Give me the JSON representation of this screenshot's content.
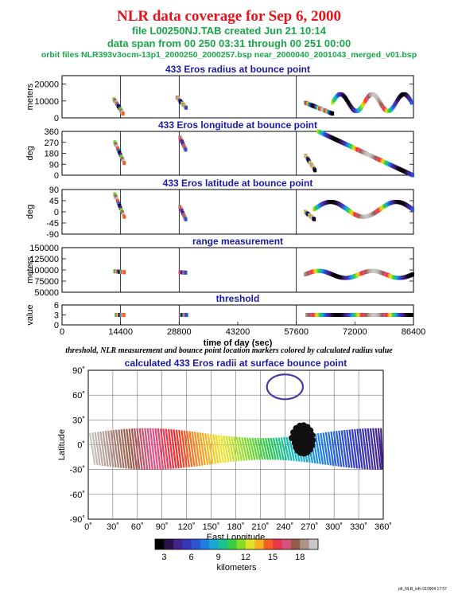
{
  "header": {
    "title": "NLR data coverage for Sep 6, 2000",
    "file_line": "file L00250NJ.TAB created Jun 21 10:14",
    "span_line": "data span from 00 250 03:31 through 00 251 00:00",
    "orbit_line": "orbit files NLR393v3ocm-13p1_2000250_2000257.bsp near_2000040_2001043_merged_v01.bsp"
  },
  "caption": "threshold, NLR measurement and bounce point location markers colored by calculated radius value",
  "footer": "plt_NLR_info 010904 17:57",
  "chart_data": [
    {
      "type": "scatter",
      "title": "433 Eros radius at bounce point",
      "ylabel": "meters",
      "ylim": [
        0,
        25000
      ],
      "yticks": [
        0,
        10000,
        20000
      ],
      "xlim": [
        0,
        86400
      ],
      "segments": [
        {
          "t": [
            12800,
            15000
          ],
          "y0": 11000,
          "y1": 2500
        },
        {
          "t": [
            28300,
            30500
          ],
          "y0": 12000,
          "y1": 6000
        },
        {
          "t": [
            59800,
            66500
          ],
          "y0": 9000,
          "y1": 2500
        },
        {
          "t": [
            66500,
            86000
          ],
          "y0": 15000,
          "y1": 4000
        }
      ]
    },
    {
      "type": "scatter",
      "title": "433 Eros longitude at bounce point",
      "ylabel": "deg",
      "ylim": [
        0,
        360
      ],
      "yticks": [
        0,
        90,
        180,
        270,
        360
      ],
      "xlim": [
        0,
        86400
      ],
      "segments": [
        {
          "t": [
            13000,
            15300
          ],
          "y0": 270,
          "y1": 100
        },
        {
          "t": [
            29000,
            30400
          ],
          "y0": 310,
          "y1": 210
        },
        {
          "t": [
            59900,
            62200
          ],
          "y0": 160,
          "y1": 40
        },
        {
          "t": [
            63000,
            86200
          ],
          "y0": 360,
          "y1": 0
        }
      ]
    },
    {
      "type": "scatter",
      "title": "433 Eros latitude at bounce point",
      "ylabel": "deg",
      "ylim": [
        -90,
        90
      ],
      "yticks": [
        -90,
        -45,
        0,
        45,
        90
      ],
      "xlim": [
        0,
        86400
      ],
      "segments": [
        {
          "t": [
            13000,
            15300
          ],
          "y0": 70,
          "y1": -20
        },
        {
          "t": [
            29000,
            30400
          ],
          "y0": 20,
          "y1": -30
        },
        {
          "t": [
            59800,
            62000
          ],
          "y0": 0,
          "y1": -30
        },
        {
          "t": [
            62000,
            86200
          ],
          "y0": 60,
          "y1": -40
        }
      ]
    },
    {
      "type": "scatter",
      "title": "range measurement",
      "ylabel": "meters",
      "ylim": [
        50000,
        150000
      ],
      "yticks": [
        50000,
        75000,
        100000,
        125000,
        150000
      ],
      "xlim": [
        0,
        86400
      ],
      "segments": [
        {
          "t": [
            13000,
            15300
          ],
          "y0": 97000,
          "y1": 95000
        },
        {
          "t": [
            29000,
            30400
          ],
          "y0": 95000,
          "y1": 94000
        },
        {
          "t": [
            59800,
            86200
          ],
          "y0": 100000,
          "y1": 88000
        }
      ]
    },
    {
      "type": "scatter",
      "title": "threshold",
      "ylabel": "value",
      "ylim": [
        0,
        6
      ],
      "yticks": [
        0,
        3,
        6
      ],
      "xlabel": "time of day (sec)",
      "xlim": [
        0,
        86400
      ],
      "xticks": [
        0,
        14400,
        28800,
        43200,
        57600,
        72000,
        86400
      ],
      "segments": [
        {
          "t": [
            13300,
            15200
          ],
          "y0": 3,
          "y1": 3
        },
        {
          "t": [
            29100,
            30600
          ],
          "y0": 3,
          "y1": 3
        },
        {
          "t": [
            60200,
            86000
          ],
          "y0": 3,
          "y1": 3
        }
      ]
    },
    {
      "type": "scatter",
      "title": "calculated 433 Eros radii at surface bounce point",
      "xlabel": "East Longitude",
      "ylabel": "Latitude",
      "xlim": [
        0,
        360
      ],
      "ylim": [
        -90,
        90
      ],
      "xticks": [
        "0˚",
        "30˚",
        "60˚",
        "90˚",
        "120˚",
        "150˚",
        "180˚",
        "210˚",
        "240˚",
        "270˚",
        "300˚",
        "330˚",
        "360˚"
      ],
      "yticks": [
        "-90˚",
        "-60˚",
        "-30˚",
        "0˚",
        "30˚",
        "60˚",
        "90˚"
      ],
      "colorbar": {
        "label": "kilometers",
        "ticks": [
          3,
          6,
          9,
          12,
          15,
          18
        ],
        "range": [
          2,
          20
        ]
      }
    }
  ]
}
